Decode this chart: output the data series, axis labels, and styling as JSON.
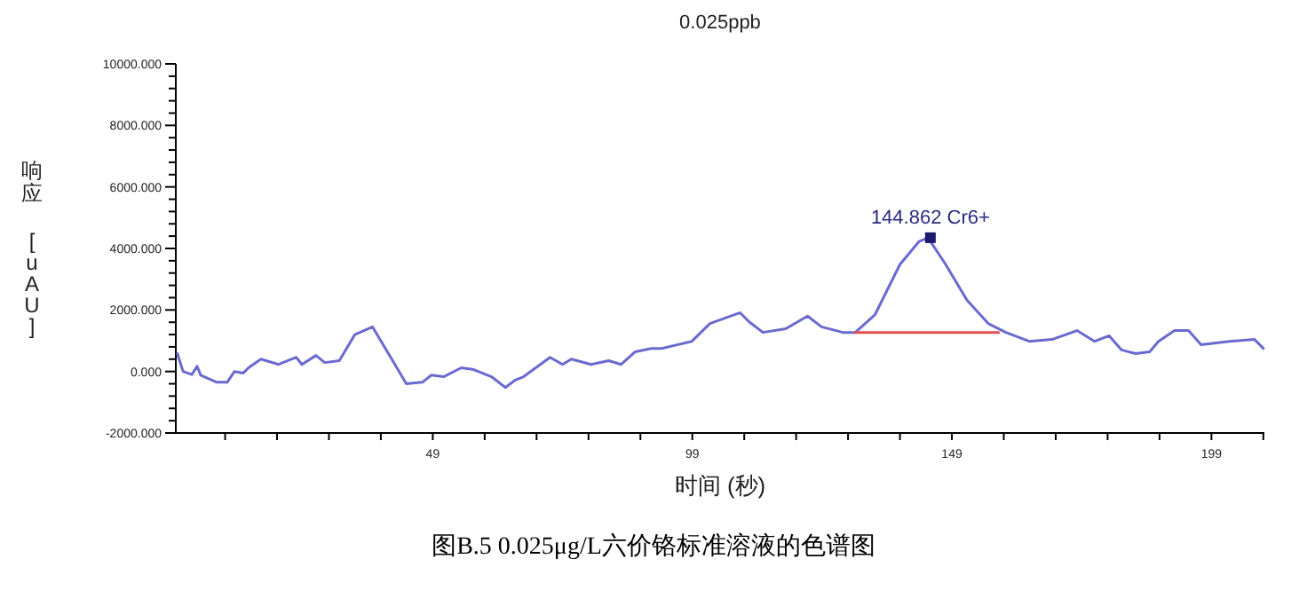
{
  "chart_data": {
    "type": "line",
    "title": "0.025ppb",
    "xlabel": "时间 (秒)",
    "ylabel": "响应 [uAU]",
    "annotations": [
      {
        "text": "144.862 Cr6+",
        "x": 144.862,
        "y": 4350
      },
      "图B.5 0.025μg/L六价铬标准溶液的色谱图"
    ],
    "xlim": [
      -0.5,
      209.2
    ],
    "xticks": [
      {
        "value": 9,
        "label": null
      },
      {
        "value": 19,
        "label": null
      },
      {
        "value": 29,
        "label": null
      },
      {
        "value": 39,
        "label": null
      },
      49,
      {
        "value": 59,
        "label": null
      },
      {
        "value": 69,
        "label": null
      },
      {
        "value": 79,
        "label": null
      },
      {
        "value": 89,
        "label": null
      },
      99,
      {
        "value": 109,
        "label": null
      },
      {
        "value": 119,
        "label": null
      },
      {
        "value": 129,
        "label": null
      },
      {
        "value": 139,
        "label": null
      },
      149,
      {
        "value": 159,
        "label": null
      },
      {
        "value": 169,
        "label": null
      },
      {
        "value": 179,
        "label": null
      },
      {
        "value": 189,
        "label": null
      },
      199,
      {
        "value": 209,
        "label": null
      }
    ],
    "ylim": [
      -2000,
      10000
    ],
    "yticks": [
      {
        "value": -2000,
        "label": "-2000.000"
      },
      {
        "value": -1600,
        "label": null
      },
      {
        "value": -1200,
        "label": null
      },
      {
        "value": -800,
        "label": null
      },
      {
        "value": -400,
        "label": null
      },
      {
        "value": 0,
        "label": "0.000"
      },
      {
        "value": 400,
        "label": null
      },
      {
        "value": 800,
        "label": null
      },
      {
        "value": 1200,
        "label": null
      },
      {
        "value": 1600,
        "label": null
      },
      {
        "value": 2000,
        "label": "2000.000"
      },
      {
        "value": 2400,
        "label": null
      },
      {
        "value": 2800,
        "label": null
      },
      {
        "value": 3200,
        "label": null
      },
      {
        "value": 3600,
        "label": null
      },
      {
        "value": 4000,
        "label": "4000.000"
      },
      {
        "value": 4400,
        "label": null
      },
      {
        "value": 4800,
        "label": null
      },
      {
        "value": 5200,
        "label": null
      },
      {
        "value": 5600,
        "label": null
      },
      {
        "value": 6000,
        "label": "6000.000"
      },
      {
        "value": 6400,
        "label": null
      },
      {
        "value": 6800,
        "label": null
      },
      {
        "value": 7200,
        "label": null
      },
      {
        "value": 7600,
        "label": null
      },
      {
        "value": 8000,
        "label": "8000.000"
      },
      {
        "value": 8400,
        "label": null
      },
      {
        "value": 8800,
        "label": null
      },
      {
        "value": 9200,
        "label": null
      },
      {
        "value": 9600,
        "label": null
      },
      {
        "value": 10000,
        "label": "10000.000"
      }
    ],
    "series": [
      {
        "color": "#6a6ad0",
        "x": [
          -0.2,
          0.9,
          2.6,
          3.6,
          4.3,
          7.4,
          9.4,
          10.8,
          12.5,
          13.5,
          15.9,
          19.3,
          22.7,
          23.8,
          26.5,
          28.2,
          31,
          34,
          37.4,
          40.9,
          43.9,
          47,
          48.7,
          51.1,
          54.5,
          56.9,
          60.3,
          63,
          64.8,
          66.5,
          71.6,
          74,
          75.7,
          79.5,
          82.9,
          85.3,
          88,
          91.1,
          93.1,
          98.9,
          102.4,
          108.2,
          109.9,
          112.6,
          117,
          121.2,
          123.9,
          128,
          130.4,
          134.2,
          139,
          142.7,
          144.4,
          147.8,
          151.9,
          156,
          159.4,
          163.9,
          168.3,
          173.1,
          176.5,
          179.3,
          181.7,
          184.4,
          187.1,
          188.8,
          191.9,
          194.6,
          197,
          202.5,
          207.3,
          209
        ],
        "values": [
          580,
          0,
          -100,
          170,
          -120,
          -350,
          -350,
          0,
          -50,
          120,
          400,
          230,
          460,
          230,
          520,
          290,
          350,
          1200,
          1450,
          460,
          -400,
          -350,
          -120,
          -170,
          120,
          60,
          -170,
          -520,
          -290,
          -170,
          460,
          230,
          400,
          230,
          350,
          230,
          640,
          750,
          750,
          980,
          1560,
          1910,
          1620,
          1270,
          1390,
          1800,
          1450,
          1270,
          1270,
          1850,
          3480,
          4230,
          4350,
          3480,
          2320,
          1560,
          1270,
          980,
          1040,
          1330,
          980,
          1160,
          700,
          580,
          640,
          980,
          1330,
          1330,
          870,
          980,
          1040,
          750
        ]
      },
      {
        "type": "line",
        "color": "#e05050",
        "x": [
          130.4,
          158
        ],
        "values": [
          1270,
          1270
        ]
      },
      {
        "type": "scatter",
        "color": "#1a1a6e",
        "marker": "square",
        "x": [
          144.862
        ],
        "values": [
          4350
        ]
      }
    ]
  }
}
